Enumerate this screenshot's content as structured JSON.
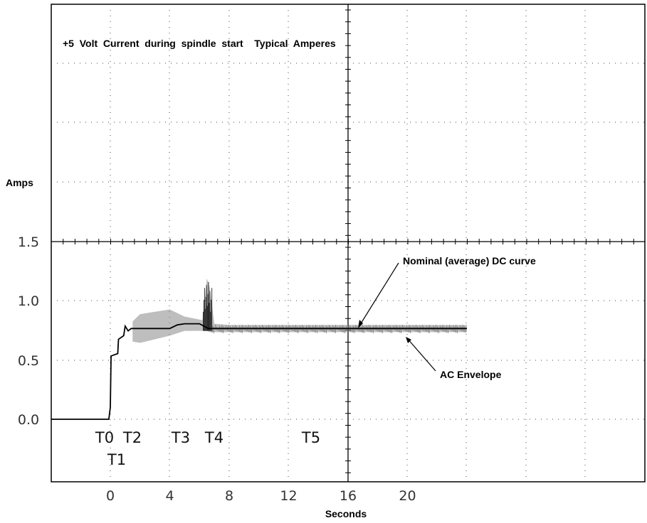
{
  "chart_data": {
    "type": "line",
    "title": "+5  Volt  Current  during  spindle  start    Typical  Amperes",
    "xlabel": "Seconds",
    "ylabel": "Amps",
    "x_ticks": [
      0,
      4,
      8,
      12,
      16,
      20
    ],
    "y_ticks": [
      "0.0",
      "0.5",
      "1.0",
      "1.5"
    ],
    "xlim": [
      -4,
      24
    ],
    "ylim": [
      -0.5,
      3.5
    ],
    "grid": true,
    "series": [
      {
        "name": "Nominal (average) DC curve",
        "x": [
          -4,
          -0.1,
          0,
          0.05,
          0.5,
          0.55,
          0.9,
          1.0,
          1.2,
          1.4,
          2.0,
          3.0,
          4.0,
          4.5,
          5.0,
          6.0,
          6.3,
          6.6,
          7.0,
          8.0,
          12.0,
          16.0,
          20.0,
          24.0
        ],
        "y": [
          0.0,
          0.0,
          0.1,
          0.53,
          0.55,
          0.67,
          0.7,
          0.78,
          0.74,
          0.76,
          0.76,
          0.76,
          0.76,
          0.79,
          0.8,
          0.8,
          0.78,
          0.76,
          0.76,
          0.76,
          0.76,
          0.76,
          0.76,
          0.76
        ]
      },
      {
        "name": "AC Envelope",
        "x": [
          1.5,
          2.0,
          3.0,
          4.0,
          5.0,
          6.2,
          6.5,
          6.7,
          7.0,
          8.0,
          12.0,
          16.0,
          20.0,
          24.0
        ],
        "y_upper": [
          0.82,
          0.88,
          0.9,
          0.92,
          0.86,
          0.83,
          1.18,
          1.1,
          0.8,
          0.79,
          0.79,
          0.79,
          0.79,
          0.79
        ],
        "y_lower": [
          0.65,
          0.64,
          0.67,
          0.7,
          0.74,
          0.74,
          0.74,
          0.73,
          0.73,
          0.73,
          0.73,
          0.73,
          0.73,
          0.73
        ]
      }
    ],
    "markers": [
      {
        "label": "T0",
        "x": 0
      },
      {
        "label": "T1",
        "x": 0.5
      },
      {
        "label": "T2",
        "x": 1.5
      },
      {
        "label": "T3",
        "x": 4.8
      },
      {
        "label": "T4",
        "x": 6.9
      },
      {
        "label": "T5",
        "x": 13.5
      }
    ],
    "annotations": [
      {
        "text": "Nominal (average) DC curve",
        "x": 16.5,
        "y": 0.76
      },
      {
        "text": "AC Envelope",
        "x": 20.0,
        "y": 0.69
      }
    ],
    "colors": {
      "dc_curve": "#000000",
      "envelope": "#888888",
      "grid": "#444444",
      "axes": "#000000"
    }
  }
}
